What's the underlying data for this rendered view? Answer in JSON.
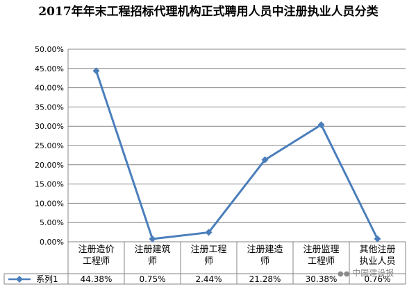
{
  "chart_data": {
    "type": "line",
    "title": "2017年年末工程招标代理机构正式聘用人员中注册执业人员分类",
    "categories": [
      [
        "注册造价",
        "工程师"
      ],
      [
        "注册建筑",
        "师"
      ],
      [
        "注册工程",
        "师"
      ],
      [
        "注册建造",
        "师"
      ],
      [
        "注册监理",
        "工程师"
      ],
      [
        "其他注册",
        "执业人员"
      ]
    ],
    "series": [
      {
        "name": "系列1",
        "values": [
          44.38,
          0.75,
          2.44,
          21.28,
          30.38,
          0.76
        ],
        "labels": [
          "44.38%",
          "0.75%",
          "2.44%",
          "21.28%",
          "30.38%",
          "0.76%"
        ],
        "color": "#4a7ebb"
      }
    ],
    "ylim": [
      0,
      50
    ],
    "yticks": [
      "0.00%",
      "5.00%",
      "10.00%",
      "15.00%",
      "20.00%",
      "25.00%",
      "30.00%",
      "35.00%",
      "40.00%",
      "45.00%",
      "50.00%"
    ],
    "grid": true,
    "data_table": true
  },
  "watermark": "中国建设报"
}
